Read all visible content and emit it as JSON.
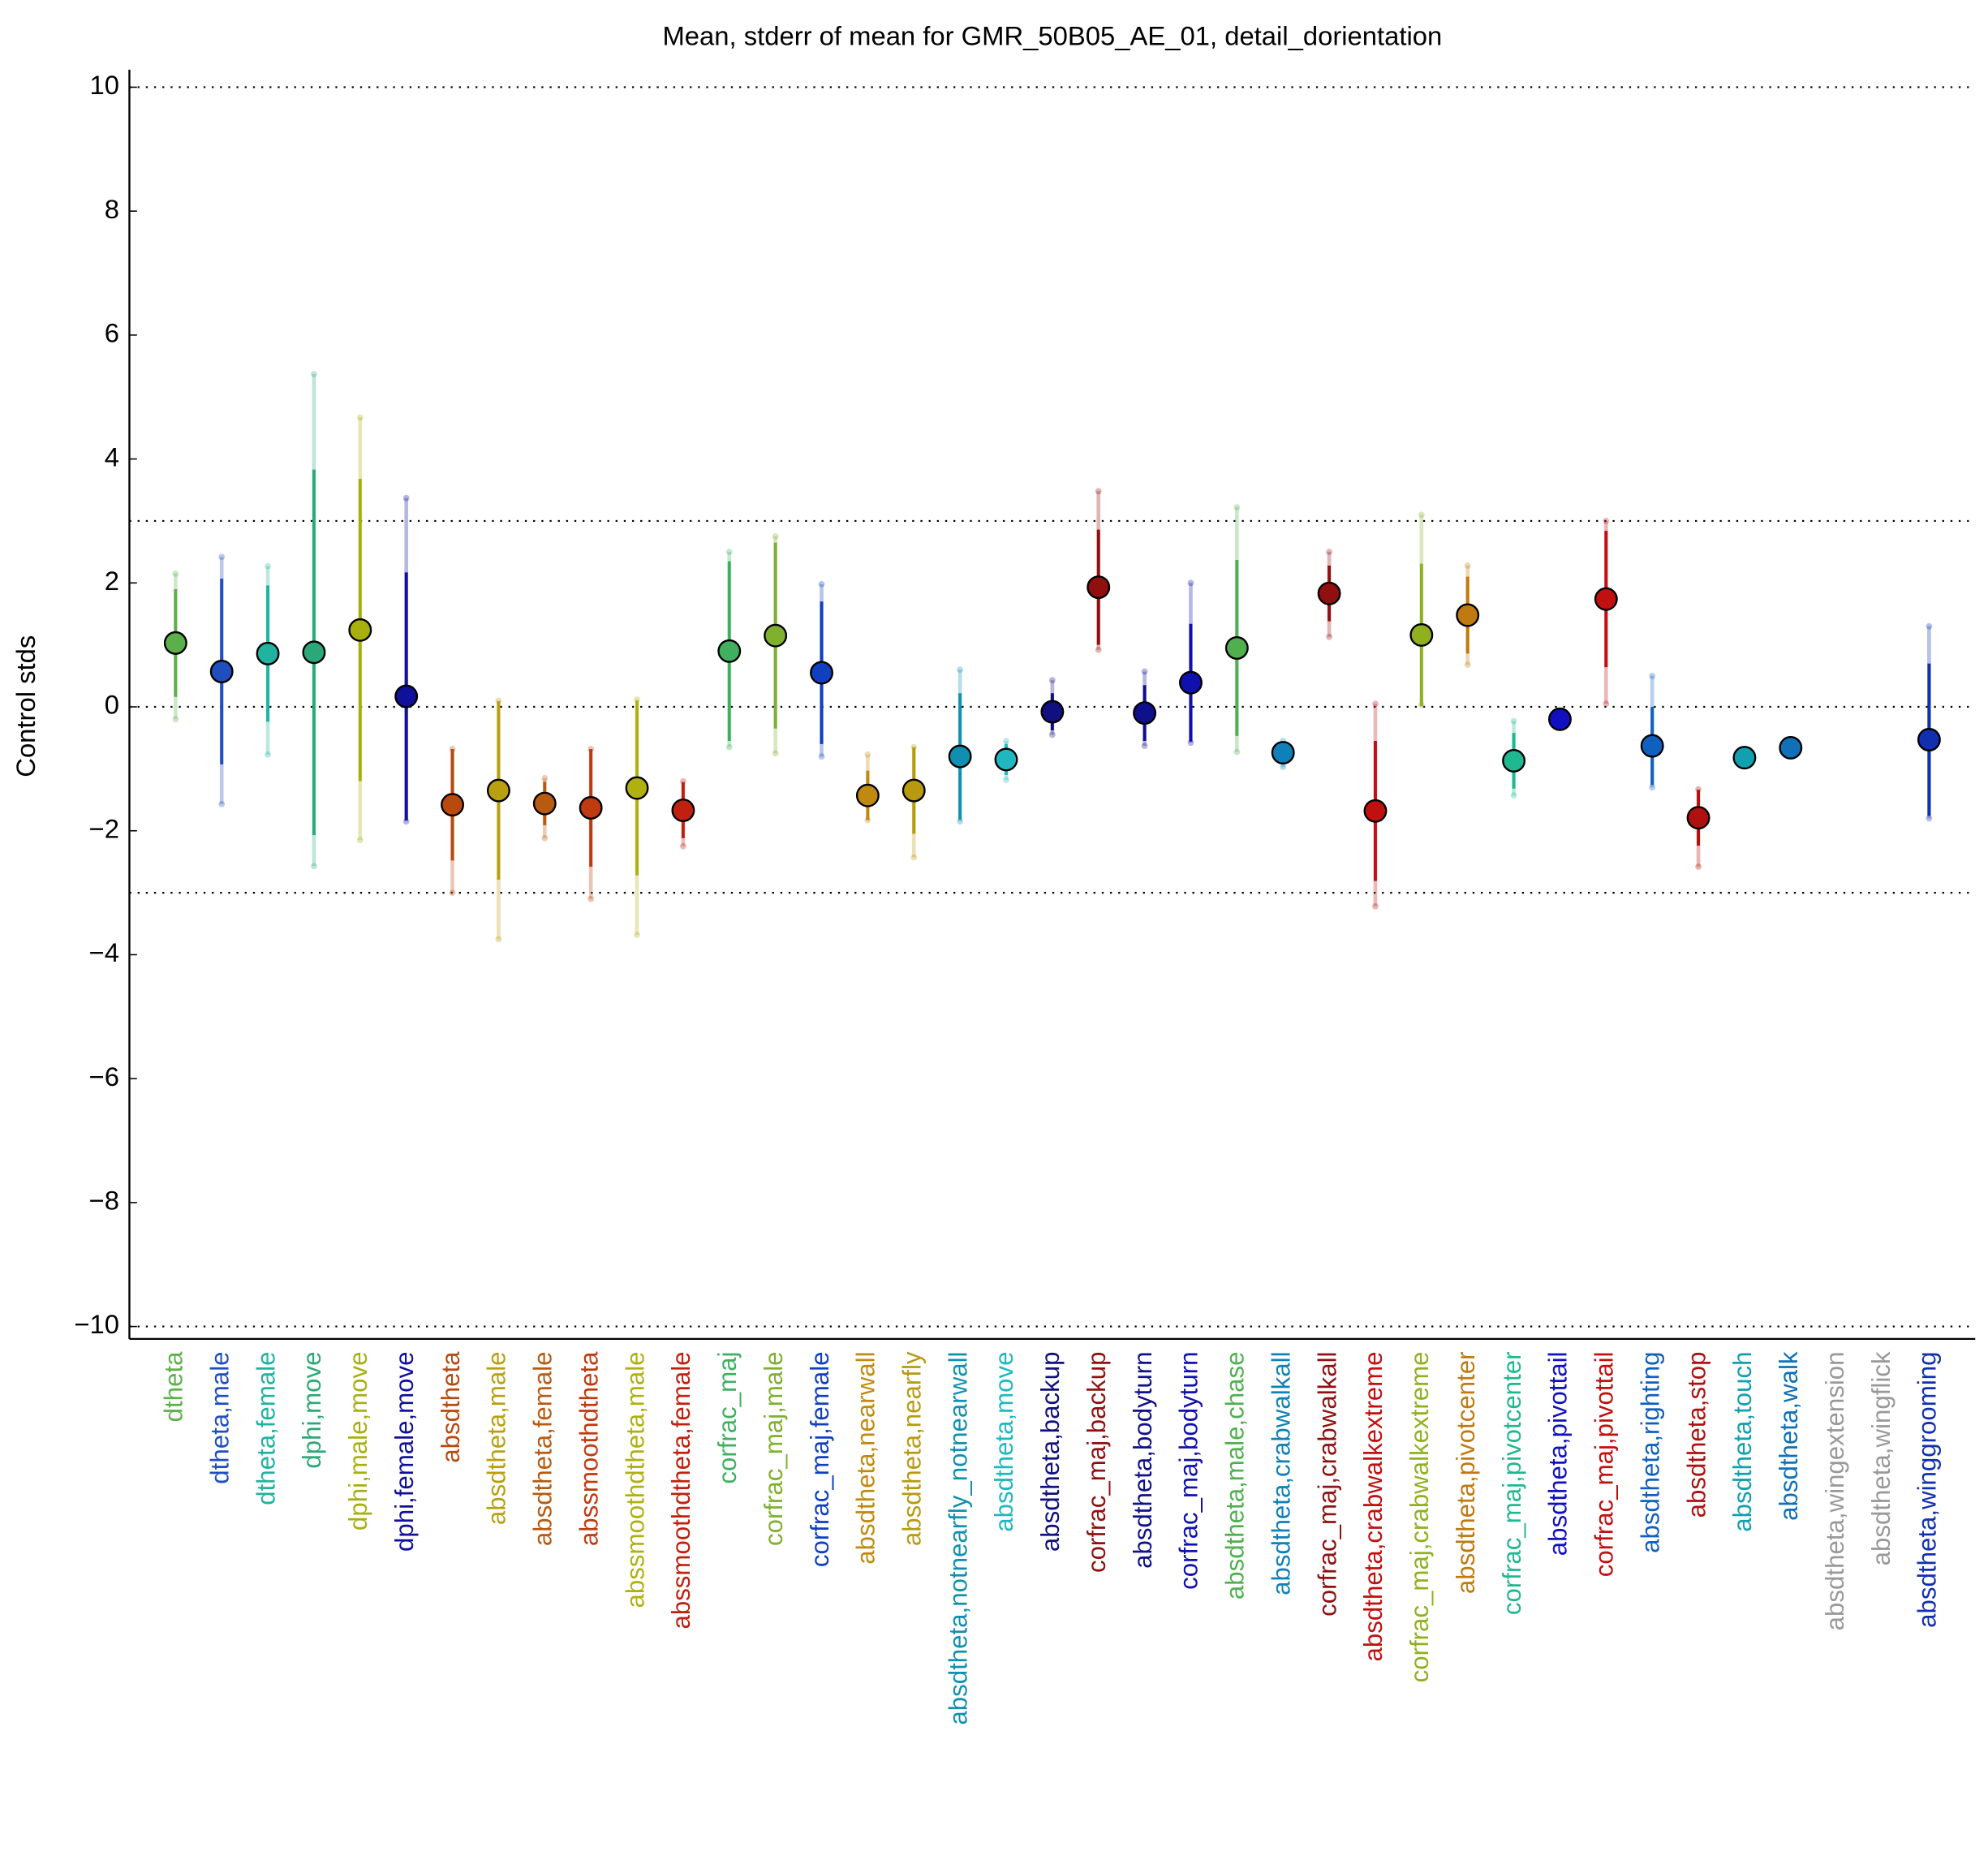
{
  "chart_data": {
    "type": "errorbar",
    "title": "Mean, stderr of mean for GMR_50B05_AE_01, detail_dorientation",
    "y_label": "Control stds",
    "ylim": [
      -10.2,
      10.2
    ],
    "yticks": [
      {
        "value": -10,
        "label": "−10"
      },
      {
        "value": -8,
        "label": "−8"
      },
      {
        "value": -6,
        "label": "−6"
      },
      {
        "value": -4,
        "label": "−4"
      },
      {
        "value": -2,
        "label": "−2"
      },
      0,
      2,
      4,
      6,
      8,
      10
    ],
    "reference_lines": [
      10,
      3,
      0,
      -3,
      -10
    ],
    "categories": [
      "dtheta",
      "dtheta,male",
      "dtheta,female",
      "dphi,move",
      "dphi,male,move",
      "dphi,female,move",
      "absdtheta",
      "absdtheta,male",
      "absdtheta,female",
      "abssmoothdtheta",
      "abssmoothdtheta,male",
      "abssmoothdtheta,female",
      "corfrac_maj",
      "corfrac_maj,male",
      "corfrac_maj,female",
      "absdtheta,nearwall",
      "absdtheta,nearfly",
      "absdtheta,notnearfly_notnearwall",
      "absdtheta,move",
      "absdtheta,backup",
      "corfrac_maj,backup",
      "absdtheta,bodyturn",
      "corfrac_maj,bodyturn",
      "absdtheta,male,chase",
      "absdtheta,crabwalkall",
      "corfrac_maj,crabwalkall",
      "absdtheta,crabwalkextreme",
      "corfrac_maj,crabwalkextreme",
      "absdtheta,pivotcenter",
      "corfrac_maj,pivotcenter",
      "absdtheta,pivottail",
      "corfrac_maj,pivottail",
      "absdtheta,righting",
      "absdtheta,stop",
      "absdtheta,touch",
      "absdtheta,walk",
      "absdtheta,wingextension",
      "absdtheta,wingflick",
      "absdtheta,winggrooming"
    ],
    "values": [
      1.03,
      0.57,
      0.86,
      0.88,
      1.24,
      0.17,
      -1.58,
      -1.35,
      -1.56,
      -1.63,
      -1.31,
      -1.67,
      0.9,
      1.15,
      0.55,
      -1.43,
      -1.35,
      -0.8,
      -0.85,
      -0.08,
      1.93,
      -0.1,
      0.39,
      0.95,
      -0.74,
      1.83,
      -1.68,
      1.16,
      1.48,
      -0.87,
      -0.2,
      1.74,
      -0.63,
      -1.79,
      -0.82,
      -0.66,
      null,
      null,
      -0.53
    ],
    "errors": [
      0.87,
      1.5,
      1.1,
      2.95,
      2.44,
      2.0,
      0.9,
      1.44,
      0.35,
      0.95,
      1.41,
      0.45,
      1.45,
      1.5,
      1.15,
      0.4,
      0.7,
      1.02,
      0.25,
      0.3,
      0.93,
      0.45,
      0.95,
      1.42,
      0.15,
      0.45,
      1.13,
      1.15,
      0.62,
      0.45,
      0.05,
      1.1,
      0.63,
      0.45,
      0.05,
      0.05,
      null,
      null,
      1.23
    ],
    "ranges": [
      [
        -0.2,
        2.15
      ],
      [
        -1.57,
        2.42
      ],
      [
        -0.77,
        2.27
      ],
      [
        -2.57,
        5.37
      ],
      [
        -2.15,
        4.67
      ],
      [
        -1.85,
        3.37
      ],
      [
        -3.0,
        -0.68
      ],
      [
        -3.75,
        0.1
      ],
      [
        -2.12,
        -1.15
      ],
      [
        -3.1,
        -0.68
      ],
      [
        -3.68,
        0.12
      ],
      [
        -2.25,
        -1.2
      ],
      [
        -0.65,
        2.5
      ],
      [
        -0.75,
        2.75
      ],
      [
        -0.8,
        1.98
      ],
      [
        -1.83,
        -0.77
      ],
      [
        -2.43,
        -0.65
      ],
      [
        -1.85,
        0.6
      ],
      [
        -1.18,
        -0.55
      ],
      [
        -0.45,
        0.43
      ],
      [
        0.92,
        3.48
      ],
      [
        -0.63,
        0.57
      ],
      [
        -0.58,
        2.0
      ],
      [
        -0.73,
        3.22
      ],
      [
        -0.97,
        -0.55
      ],
      [
        1.13,
        2.5
      ],
      [
        -3.22,
        0.05
      ],
      [
        0.03,
        3.1
      ],
      [
        0.68,
        2.28
      ],
      [
        -1.43,
        -0.23
      ],
      [
        -0.25,
        -0.15
      ],
      [
        0.05,
        3.0
      ],
      [
        -1.3,
        0.5
      ],
      [
        -2.58,
        -1.33
      ],
      [
        -0.87,
        -0.77
      ],
      [
        -0.71,
        -0.61
      ],
      null,
      null,
      [
        -1.8,
        1.3
      ]
    ],
    "colors": [
      "#5cb04a",
      "#1f4fbf",
      "#20b3a0",
      "#2aa87a",
      "#a8b010",
      "#10109a",
      "#b84a10",
      "#b8a010",
      "#b85a10",
      "#c03a10",
      "#b0b010",
      "#c02010",
      "#40b060",
      "#80b030",
      "#1040c0",
      "#c08a10",
      "#b89a10",
      "#1090b0",
      "#20b8c0",
      "#101080",
      "#901010",
      "#10108a",
      "#1010b0",
      "#50b050",
      "#1080b8",
      "#901010",
      "#c01010",
      "#90b020",
      "#c07a10",
      "#20b890",
      "#1010c0",
      "#c01010",
      "#1060c0",
      "#b01010",
      "#10a0b0",
      "#1070b8",
      "#999999",
      "#999999",
      "#1030b0"
    ]
  }
}
